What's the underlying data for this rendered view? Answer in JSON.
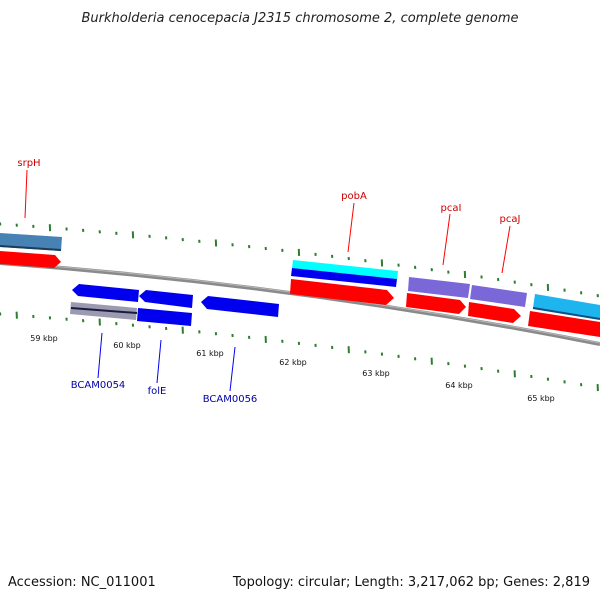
{
  "title": "Burkholderia cenocepacia J2315 chromosome 2, complete genome",
  "footer": {
    "accession": "Accession: NC_011001",
    "summary": "Topology: circular; Length: 3,217,062 bp; Genes: 2,819"
  },
  "colors": {
    "forward_cds": "#ff0000",
    "reverse_cds": "#0000ee",
    "forward_label": "#cc0000",
    "reverse_label": "#0000aa",
    "tick": "#2e7d32",
    "backbone": "#8a8a8a",
    "steelblue_feature": "#4682b4",
    "cyan_feature": "#00ffff",
    "skyblue_feature": "#1eb4ee",
    "slateblue_feature": "#7b68d8",
    "gray_feature": "#9a9ab0"
  },
  "scale_labels": [
    "59 kbp",
    "60 kbp",
    "61 kbp",
    "62 kbp",
    "63 kbp",
    "64 kbp",
    "65 kbp"
  ],
  "gene_labels": [
    {
      "name": "srpH",
      "strand": "forward"
    },
    {
      "name": "pobA",
      "strand": "forward"
    },
    {
      "name": "pcaI",
      "strand": "forward"
    },
    {
      "name": "pcaJ",
      "strand": "forward"
    },
    {
      "name": "BCAM0054",
      "strand": "reverse"
    },
    {
      "name": "folE",
      "strand": "reverse"
    },
    {
      "name": "BCAM0056",
      "strand": "reverse"
    }
  ]
}
